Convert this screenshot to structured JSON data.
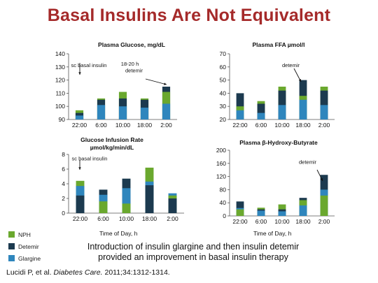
{
  "slide": {
    "title": "Basal Insulins Are Not Equivalent",
    "caption_line1": "Introduction of insulin glargine and then insulin detemir",
    "caption_line2": "provided an improvement in basal insulin therapy",
    "citation_prefix": "Lucidi P, et al. ",
    "citation_journal": "Diabetes Care.",
    "citation_suffix": " 2011;34:1312-1314.",
    "xaxis_title": "Time of Day, h"
  },
  "colors": {
    "NPH": "#6aa82e",
    "Detemir": "#1c3a4f",
    "Glargine": "#2f86bd"
  },
  "legend": [
    "NPH",
    "Detemir",
    "Glargine"
  ],
  "chart_data": [
    {
      "id": "glucose",
      "type": "bar",
      "title": "Plasma Glucose, mg/dL",
      "title2": "",
      "categories": [
        "22:00",
        "6:00",
        "10:00",
        "18:00",
        "2:00"
      ],
      "ylim": [
        90,
        140
      ],
      "yticks": [
        90,
        100,
        110,
        120,
        130,
        140
      ],
      "series": [
        {
          "name": "Glargine",
          "values": [
            93,
            101,
            100,
            99,
            102
          ]
        },
        {
          "name": "Detemir",
          "values": [
            95,
            105,
            106,
            105,
            115
          ]
        },
        {
          "name": "NPH",
          "values": [
            97,
            106,
            111,
            106,
            111
          ]
        }
      ],
      "annotations": [
        {
          "text": "sc basal insulin",
          "at": [
            0,
            130
          ]
        },
        {
          "text": "18-20 h",
          "at": [
            2.3,
            131
          ]
        },
        {
          "text": "detemir",
          "at": [
            2.5,
            126
          ]
        }
      ]
    },
    {
      "id": "ffa",
      "type": "bar",
      "title": "Plasma FFA µmol/l",
      "title2": "",
      "categories": [
        "22:00",
        "6:00",
        "10:00",
        "18:00",
        "2:00"
      ],
      "ylim": [
        20,
        70
      ],
      "yticks": [
        20,
        30,
        40,
        50,
        60,
        70
      ],
      "series": [
        {
          "name": "Glargine",
          "values": [
            27,
            25,
            31,
            35,
            31
          ]
        },
        {
          "name": "Detemir",
          "values": [
            40,
            32,
            42,
            50,
            42
          ]
        },
        {
          "name": "NPH",
          "values": [
            30,
            34,
            45,
            38,
            45
          ]
        }
      ],
      "annotations": [
        {
          "text": "detemir",
          "at": [
            2.4,
            60
          ]
        }
      ]
    },
    {
      "id": "gir",
      "type": "bar",
      "title": "Glucose Infusion Rate",
      "title2": "µmol/kg/min/dL",
      "categories": [
        "22:00",
        "6:00",
        "10:00",
        "18:00",
        "2:00"
      ],
      "ylim": [
        0,
        8
      ],
      "yticks": [
        0,
        2,
        4,
        6,
        8
      ],
      "series": [
        {
          "name": "Glargine",
          "values": [
            3.7,
            2.5,
            3.4,
            4.3,
            2.7
          ]
        },
        {
          "name": "Detemir",
          "values": [
            2.4,
            3.2,
            4.7,
            3.8,
            2.0
          ]
        },
        {
          "name": "NPH",
          "values": [
            4.4,
            1.6,
            1.3,
            6.2,
            2.4
          ]
        }
      ],
      "annotations": [
        {
          "text": "sc basal insulin",
          "at": [
            0,
            7.2
          ]
        }
      ]
    },
    {
      "id": "bhb",
      "type": "bar",
      "title": "Plasma β-Hydroxy-Butyrate",
      "title2": "",
      "categories": [
        "22:00",
        "6:00",
        "10:00",
        "18:00",
        "2:00"
      ],
      "ylim": [
        0,
        200
      ],
      "yticks": [
        0,
        40,
        80,
        120,
        160,
        200
      ],
      "series": [
        {
          "name": "Glargine",
          "values": [
            24,
            16,
            14,
            32,
            80
          ]
        },
        {
          "name": "Detemir",
          "values": [
            44,
            20,
            20,
            55,
            125
          ]
        },
        {
          "name": "NPH",
          "values": [
            20,
            25,
            35,
            48,
            62
          ]
        }
      ],
      "annotations": [
        {
          "text": "detemir",
          "at": [
            3.2,
            158
          ]
        }
      ]
    }
  ]
}
